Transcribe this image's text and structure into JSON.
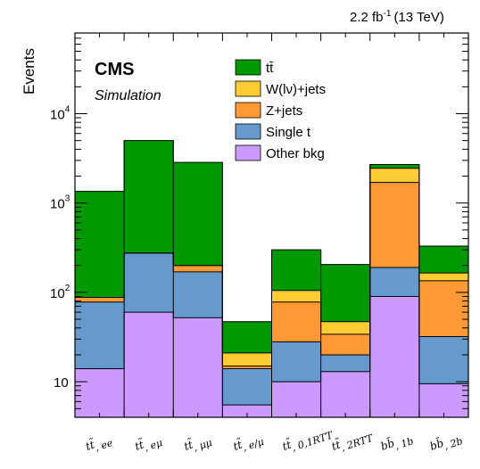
{
  "chart_data": {
    "type": "bar",
    "stacked": true,
    "yscale": "log",
    "ylim": [
      4,
      80000
    ],
    "ylabel": "Events",
    "lumi_label": "2.2 fb",
    "lumi_exp": "-1",
    "energy_label": "(13 TeV)",
    "cms_label": "CMS",
    "sim_label": "Simulation",
    "yticks": [
      {
        "value": 10,
        "label": "10"
      },
      {
        "value": 100,
        "label": "10",
        "exp": "2"
      },
      {
        "value": 1000,
        "label": "10",
        "exp": "3"
      },
      {
        "value": 10000,
        "label": "10",
        "exp": "4"
      }
    ],
    "categories": [
      {
        "base": "tt̃",
        "sub": ", ee"
      },
      {
        "base": "tt̃",
        "sub": ", eμ"
      },
      {
        "base": "tt̃",
        "sub": ", μμ"
      },
      {
        "base": "tt̃",
        "sub": ", e/μ"
      },
      {
        "base": "tt̃",
        "sub": ", 0,1RTT"
      },
      {
        "base": "tt̃",
        "sub": ", 2RTT"
      },
      {
        "base": "bb̄",
        "sub": ", 1b"
      },
      {
        "base": "bb̄",
        "sub": ", 2b"
      }
    ],
    "series": [
      {
        "name": "Other bkg",
        "color": "#cc99ff",
        "cumulative": [
          14,
          60,
          52,
          5.5,
          10,
          13,
          90,
          9.5
        ]
      },
      {
        "name": "Single t",
        "color": "#6699cc",
        "cumulative": [
          78,
          275,
          170,
          14,
          28,
          20,
          190,
          32
        ]
      },
      {
        "name": "Z+jets",
        "color": "#ff9933",
        "cumulative": [
          88,
          275,
          200,
          15,
          78,
          34,
          1700,
          135
        ]
      },
      {
        "name": "W(lν)+jets",
        "color": "#ffcc33",
        "cumulative": [
          88,
          275,
          200,
          21,
          105,
          47,
          2450,
          165
        ]
      },
      {
        "name": "tt̄",
        "color": "#009900",
        "cumulative": [
          1350,
          5000,
          2850,
          47,
          300,
          205,
          2700,
          330
        ]
      }
    ],
    "legend_order": [
      "tt̄",
      "W(lν)+jets",
      "Z+jets",
      "Single t",
      "Other bkg"
    ]
  }
}
